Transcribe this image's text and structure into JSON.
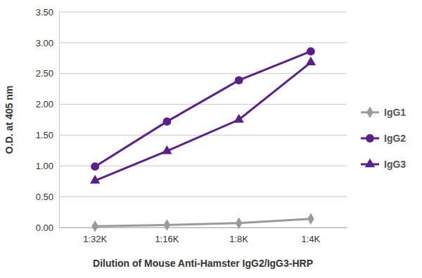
{
  "chart_data": {
    "type": "line",
    "x_label": "Dilution of Mouse Anti-Hamster IgG2/IgG3-HRP",
    "y_label": "O.D. at 405 nm",
    "categories": [
      "1:32K",
      "1:16K",
      "1:8K",
      "1:4K"
    ],
    "series": [
      {
        "name": "IgG1",
        "color": "#9a9a9a",
        "marker": "diamond",
        "values": [
          0.02,
          0.04,
          0.07,
          0.14
        ]
      },
      {
        "name": "IgG2",
        "color": "#5a1f8f",
        "marker": "circle",
        "values": [
          0.99,
          1.72,
          2.39,
          2.86
        ]
      },
      {
        "name": "IgG3",
        "color": "#5a1f8f",
        "marker": "triangle",
        "values": [
          0.76,
          1.24,
          1.75,
          2.68
        ]
      }
    ],
    "ylim": [
      0,
      3.5
    ],
    "yticks": [
      {
        "value": 0,
        "label": "0.00"
      },
      {
        "value": 0.5,
        "label": "0.50"
      },
      {
        "value": 1,
        "label": "1.00"
      },
      {
        "value": 1.5,
        "label": "1.50"
      },
      {
        "value": 2,
        "label": "2.00"
      },
      {
        "value": 2.5,
        "label": "2.50"
      },
      {
        "value": 3,
        "label": "3.00"
      },
      {
        "value": 3.5,
        "label": "3.50"
      }
    ],
    "grid": true,
    "legend": "right"
  }
}
